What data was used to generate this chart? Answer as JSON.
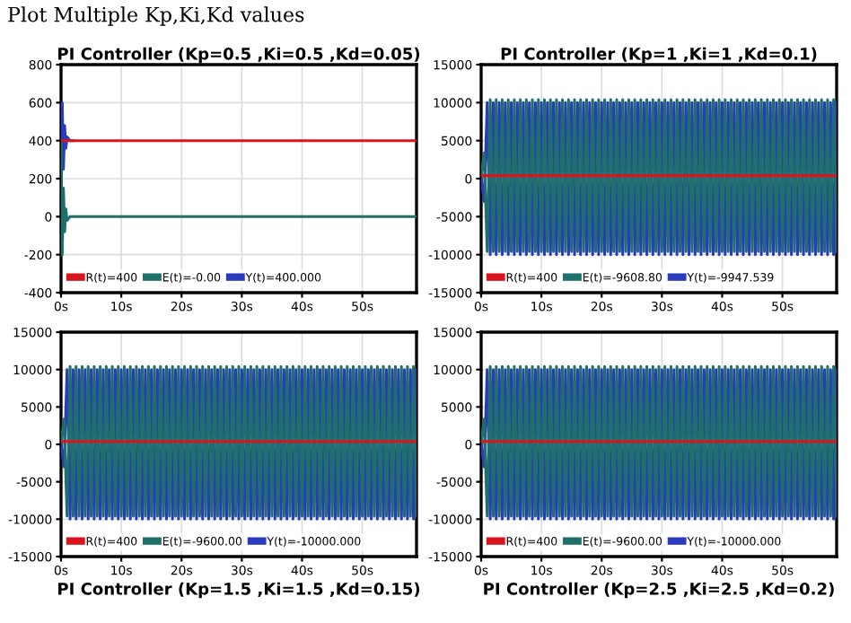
{
  "chart_data": [
    {
      "type": "line",
      "title": "PI Controller (Kp=0.5 ,Ki=0.5 ,Kd=0.05)",
      "annotations": [
        "Plot Multiple Kp,Ki,Kd values"
      ],
      "x": [
        0,
        0.2,
        0.4,
        0.6,
        0.8,
        1.0,
        1.5,
        2,
        10,
        20,
        30,
        40,
        50,
        59
      ],
      "series": [
        {
          "name": "R(t)=400",
          "color": "#d9141c",
          "values": [
            400,
            400,
            400,
            400,
            400,
            400,
            400,
            400,
            400,
            400,
            400,
            400,
            400,
            400
          ]
        },
        {
          "name": "E(t)=-0.00",
          "color": "#1f6f6a",
          "values": [
            400,
            -200,
            150,
            -80,
            40,
            -20,
            0,
            0,
            0,
            0,
            0,
            0,
            0,
            0
          ]
        },
        {
          "name": "Y(t)=400.000",
          "color": "#2b3bbd",
          "values": [
            0,
            600,
            250,
            480,
            360,
            420,
            400,
            400,
            null,
            null,
            null,
            null,
            null,
            null
          ]
        }
      ],
      "xlim": [
        0,
        59
      ],
      "xticks": [
        {
          "value": 0,
          "label": "0s"
        },
        {
          "value": 10,
          "label": "10s"
        },
        {
          "value": 20,
          "label": "20s"
        },
        {
          "value": 30,
          "label": "30s"
        },
        {
          "value": 40,
          "label": "40s"
        },
        {
          "value": 50,
          "label": "50s"
        }
      ],
      "ylim": [
        -400,
        800
      ],
      "yticks": [
        -400,
        -200,
        0,
        200,
        400,
        600,
        800
      ],
      "grid": true,
      "legend": "bottom left"
    },
    {
      "type": "line",
      "title": "PI Controller (Kp=1 ,Ki=1 ,Kd=0.1)",
      "x": [
        0,
        0.5,
        1,
        1.5,
        2,
        2.5,
        3,
        3.5,
        4,
        4.5,
        5,
        5.5,
        6,
        6.5,
        7,
        7.5,
        8,
        8.5,
        9,
        9.5,
        10,
        10.5,
        11,
        11.5,
        12,
        12.5,
        13,
        13.5,
        14,
        14.5,
        15,
        15.5,
        16,
        16.5,
        17,
        17.5,
        18,
        18.5,
        19,
        19.5,
        20,
        20.5,
        21,
        21.5,
        22,
        22.5,
        23,
        23.5,
        24,
        24.5,
        25,
        25.5,
        26,
        26.5,
        27,
        27.5,
        28,
        28.5,
        29,
        29.5,
        30,
        30.5,
        31,
        31.5,
        32,
        32.5,
        33,
        33.5,
        34,
        34.5,
        35,
        35.5,
        36,
        36.5,
        37,
        37.5,
        38,
        38.5,
        39,
        39.5,
        40,
        40.5,
        41,
        41.5,
        42,
        42.5,
        43,
        43.5,
        44,
        44.5,
        45,
        45.5,
        46,
        46.5,
        47,
        47.5,
        48,
        48.5,
        49,
        49.5,
        50,
        50.5,
        51,
        51.5,
        52,
        52.5,
        53,
        53.5,
        54,
        54.5,
        55,
        55.5,
        56,
        56.5,
        57,
        57.5,
        58,
        58.5,
        59
      ],
      "series": [
        {
          "name": "R(t)=400",
          "color": "#d9141c",
          "values": [
            400,
            400,
            400,
            400,
            400,
            400,
            400,
            400,
            400,
            400,
            400,
            400,
            400,
            400,
            400,
            400,
            400,
            400,
            400,
            400,
            400,
            400,
            400,
            400,
            400,
            400,
            400,
            400,
            400,
            400,
            400,
            400,
            400,
            400,
            400,
            400,
            400,
            400,
            400,
            400,
            400,
            400,
            400,
            400,
            400,
            400,
            400,
            400,
            400,
            400,
            400,
            400,
            400,
            400,
            400,
            400,
            400,
            400,
            400,
            400,
            400,
            400,
            400,
            400,
            400,
            400,
            400,
            400,
            400,
            400,
            400,
            400,
            400,
            400,
            400,
            400,
            400,
            400,
            400,
            400,
            400,
            400,
            400,
            400,
            400,
            400,
            400,
            400,
            400,
            400,
            400,
            400,
            400,
            400,
            400,
            400,
            400,
            400,
            400,
            400,
            400,
            400,
            400,
            400,
            400,
            400,
            400,
            400,
            400,
            400,
            400,
            400,
            400,
            400,
            400,
            400,
            400,
            400,
            400
          ]
        },
        {
          "name": "E(t)=-9608.80",
          "color": "#1f6f6a",
          "values": [
            400,
            3400,
            -9600,
            10400,
            -9600,
            10400,
            -9600,
            10400,
            -9600,
            10400,
            -9600,
            10400,
            -9600,
            10400,
            -9600,
            10400,
            -9600,
            10400,
            -9600,
            10400,
            -9600,
            10400,
            -9600,
            10400,
            -9600,
            10400,
            -9600,
            10400,
            -9600,
            10400,
            -9600,
            10400,
            -9600,
            10400,
            -9600,
            10400,
            -9600,
            10400,
            -9600,
            10400,
            -9600,
            10400,
            -9600,
            10400,
            -9600,
            10400,
            -9600,
            10400,
            -9600,
            10400,
            -9600,
            10400,
            -9600,
            10400,
            -9600,
            10400,
            -9600,
            10400,
            -9600,
            10400,
            -9600,
            10400,
            -9600,
            10400,
            -9600,
            10400,
            -9600,
            10400,
            -9600,
            10400,
            -9600,
            10400,
            -9600,
            10400,
            -9600,
            10400,
            -9600,
            10400,
            -9600,
            10400,
            -9600,
            10400,
            -9600,
            10400,
            -9600,
            10400,
            -9600,
            10400,
            -9600,
            10400,
            -9600,
            10400,
            -9600,
            10400,
            -9600,
            10400,
            -9600,
            10400,
            -9600,
            10400,
            -9600,
            10400,
            -9600,
            10400,
            -9600,
            10400,
            -9600,
            10400,
            -9600,
            10400,
            -9600,
            10400,
            -9600,
            10400,
            -9600,
            10400,
            -9600,
            10400,
            -9600
          ]
        },
        {
          "name": "Y(t)=-9947.539",
          "color": "#2b3bbd",
          "values": [
            0,
            -3000,
            10000,
            -10000,
            10000,
            -10000,
            10000,
            -10000,
            10000,
            -10000,
            10000,
            -10000,
            10000,
            -10000,
            10000,
            -10000,
            10000,
            -10000,
            10000,
            -10000,
            10000,
            -10000,
            10000,
            -10000,
            10000,
            -10000,
            10000,
            -10000,
            10000,
            -10000,
            10000,
            -10000,
            10000,
            -10000,
            10000,
            -10000,
            10000,
            -10000,
            10000,
            -10000,
            10000,
            -10000,
            10000,
            -10000,
            10000,
            -10000,
            10000,
            -10000,
            10000,
            -10000,
            10000,
            -10000,
            10000,
            -10000,
            10000,
            -10000,
            10000,
            -10000,
            10000,
            -10000,
            10000,
            -10000,
            10000,
            -10000,
            10000,
            -10000,
            10000,
            -10000,
            10000,
            -10000,
            10000,
            -10000,
            10000,
            -10000,
            10000,
            -10000,
            10000,
            -10000,
            10000,
            -10000,
            10000,
            -10000,
            10000,
            -10000,
            10000,
            -10000,
            10000,
            -10000,
            10000,
            -10000,
            10000,
            -10000,
            10000,
            -10000,
            10000,
            -10000,
            10000,
            -10000,
            10000,
            -10000,
            10000,
            -10000,
            10000,
            -10000,
            10000,
            -10000,
            10000,
            -10000,
            10000,
            -10000,
            10000,
            -10000,
            10000,
            -10000,
            10000,
            -10000,
            10000,
            -10000,
            10000
          ]
        }
      ],
      "xlim": [
        0,
        59
      ],
      "xticks": [
        {
          "value": 0,
          "label": "0s"
        },
        {
          "value": 10,
          "label": "10s"
        },
        {
          "value": 20,
          "label": "20s"
        },
        {
          "value": 30,
          "label": "30s"
        },
        {
          "value": 40,
          "label": "40s"
        },
        {
          "value": 50,
          "label": "50s"
        }
      ],
      "ylim": [
        -15000,
        15000
      ],
      "yticks": [
        -15000,
        -10000,
        -5000,
        0,
        5000,
        10000,
        15000
      ],
      "grid": true,
      "legend": "bottom left"
    },
    {
      "type": "line",
      "title": "PI Controller (Kp=1.5 ,Ki=1.5 ,Kd=0.15)",
      "x": [
        0,
        0.5,
        1,
        1.5,
        2,
        2.5,
        3,
        3.5,
        4,
        4.5,
        5,
        5.5,
        6,
        6.5,
        7,
        7.5,
        8,
        8.5,
        9,
        9.5,
        10,
        10.5,
        11,
        11.5,
        12,
        12.5,
        13,
        13.5,
        14,
        14.5,
        15,
        15.5,
        16,
        16.5,
        17,
        17.5,
        18,
        18.5,
        19,
        19.5,
        20,
        20.5,
        21,
        21.5,
        22,
        22.5,
        23,
        23.5,
        24,
        24.5,
        25,
        25.5,
        26,
        26.5,
        27,
        27.5,
        28,
        28.5,
        29,
        29.5,
        30,
        30.5,
        31,
        31.5,
        32,
        32.5,
        33,
        33.5,
        34,
        34.5,
        35,
        35.5,
        36,
        36.5,
        37,
        37.5,
        38,
        38.5,
        39,
        39.5,
        40,
        40.5,
        41,
        41.5,
        42,
        42.5,
        43,
        43.5,
        44,
        44.5,
        45,
        45.5,
        46,
        46.5,
        47,
        47.5,
        48,
        48.5,
        49,
        49.5,
        50,
        50.5,
        51,
        51.5,
        52,
        52.5,
        53,
        53.5,
        54,
        54.5,
        55,
        55.5,
        56,
        56.5,
        57,
        57.5,
        58,
        58.5,
        59
      ],
      "series": [
        {
          "name": "R(t)=400",
          "color": "#d9141c",
          "values": [
            400,
            400,
            400,
            400,
            400,
            400,
            400,
            400,
            400,
            400,
            400,
            400,
            400,
            400,
            400,
            400,
            400,
            400,
            400,
            400,
            400,
            400,
            400,
            400,
            400,
            400,
            400,
            400,
            400,
            400,
            400,
            400,
            400,
            400,
            400,
            400,
            400,
            400,
            400,
            400,
            400,
            400,
            400,
            400,
            400,
            400,
            400,
            400,
            400,
            400,
            400,
            400,
            400,
            400,
            400,
            400,
            400,
            400,
            400,
            400,
            400,
            400,
            400,
            400,
            400,
            400,
            400,
            400,
            400,
            400,
            400,
            400,
            400,
            400,
            400,
            400,
            400,
            400,
            400,
            400,
            400,
            400,
            400,
            400,
            400,
            400,
            400,
            400,
            400,
            400,
            400,
            400,
            400,
            400,
            400,
            400,
            400,
            400,
            400,
            400,
            400,
            400,
            400,
            400,
            400,
            400,
            400,
            400,
            400,
            400,
            400,
            400,
            400,
            400,
            400,
            400,
            400,
            400,
            400
          ]
        },
        {
          "name": "E(t)=-9600.00",
          "color": "#1f6f6a",
          "values": [
            400,
            3400,
            -9600,
            10400,
            -9600,
            10400,
            -9600,
            10400,
            -9600,
            10400,
            -9600,
            10400,
            -9600,
            10400,
            -9600,
            10400,
            -9600,
            10400,
            -9600,
            10400,
            -9600,
            10400,
            -9600,
            10400,
            -9600,
            10400,
            -9600,
            10400,
            -9600,
            10400,
            -9600,
            10400,
            -9600,
            10400,
            -9600,
            10400,
            -9600,
            10400,
            -9600,
            10400,
            -9600,
            10400,
            -9600,
            10400,
            -9600,
            10400,
            -9600,
            10400,
            -9600,
            10400,
            -9600,
            10400,
            -9600,
            10400,
            -9600,
            10400,
            -9600,
            10400,
            -9600,
            10400,
            -9600,
            10400,
            -9600,
            10400,
            -9600,
            10400,
            -9600,
            10400,
            -9600,
            10400,
            -9600,
            10400,
            -9600,
            10400,
            -9600,
            10400,
            -9600,
            10400,
            -9600,
            10400,
            -9600,
            10400,
            -9600,
            10400,
            -9600,
            10400,
            -9600,
            10400,
            -9600,
            10400,
            -9600,
            10400,
            -9600,
            10400,
            -9600,
            10400,
            -9600,
            10400,
            -9600,
            10400,
            -9600,
            10400,
            -9600,
            10400,
            -9600,
            10400,
            -9600,
            10400,
            -9600,
            10400,
            -9600,
            10400,
            -9600,
            10400,
            -9600,
            10400,
            -9600,
            10400,
            -9600
          ]
        },
        {
          "name": "Y(t)=-10000.000",
          "color": "#2b3bbd",
          "values": [
            0,
            -3000,
            10000,
            -10000,
            10000,
            -10000,
            10000,
            -10000,
            10000,
            -10000,
            10000,
            -10000,
            10000,
            -10000,
            10000,
            -10000,
            10000,
            -10000,
            10000,
            -10000,
            10000,
            -10000,
            10000,
            -10000,
            10000,
            -10000,
            10000,
            -10000,
            10000,
            -10000,
            10000,
            -10000,
            10000,
            -10000,
            10000,
            -10000,
            10000,
            -10000,
            10000,
            -10000,
            10000,
            -10000,
            10000,
            -10000,
            10000,
            -10000,
            10000,
            -10000,
            10000,
            -10000,
            10000,
            -10000,
            10000,
            -10000,
            10000,
            -10000,
            10000,
            -10000,
            10000,
            -10000,
            10000,
            -10000,
            10000,
            -10000,
            10000,
            -10000,
            10000,
            -10000,
            10000,
            -10000,
            10000,
            -10000,
            10000,
            -10000,
            10000,
            -10000,
            10000,
            -10000,
            10000,
            -10000,
            10000,
            -10000,
            10000,
            -10000,
            10000,
            -10000,
            10000,
            -10000,
            10000,
            -10000,
            10000,
            -10000,
            10000,
            -10000,
            10000,
            -10000,
            10000,
            -10000,
            10000,
            -10000,
            10000,
            -10000,
            10000,
            -10000,
            10000,
            -10000,
            10000,
            -10000,
            10000,
            -10000,
            10000,
            -10000,
            10000,
            -10000,
            10000,
            -10000,
            10000,
            -10000,
            10000
          ]
        }
      ],
      "xlim": [
        0,
        59
      ],
      "xticks": [
        {
          "value": 0,
          "label": "0s"
        },
        {
          "value": 10,
          "label": "10s"
        },
        {
          "value": 20,
          "label": "20s"
        },
        {
          "value": 30,
          "label": "30s"
        },
        {
          "value": 40,
          "label": "40s"
        },
        {
          "value": 50,
          "label": "50s"
        }
      ],
      "ylim": [
        -15000,
        15000
      ],
      "yticks": [
        -15000,
        -10000,
        -5000,
        0,
        5000,
        10000,
        15000
      ],
      "grid": true,
      "legend": "bottom left"
    },
    {
      "type": "line",
      "title": "PI Controller (Kp=2.5 ,Ki=2.5 ,Kd=0.2)",
      "x": [
        0,
        0.5,
        1,
        1.5,
        2,
        2.5,
        3,
        3.5,
        4,
        4.5,
        5,
        5.5,
        6,
        6.5,
        7,
        7.5,
        8,
        8.5,
        9,
        9.5,
        10,
        10.5,
        11,
        11.5,
        12,
        12.5,
        13,
        13.5,
        14,
        14.5,
        15,
        15.5,
        16,
        16.5,
        17,
        17.5,
        18,
        18.5,
        19,
        19.5,
        20,
        20.5,
        21,
        21.5,
        22,
        22.5,
        23,
        23.5,
        24,
        24.5,
        25,
        25.5,
        26,
        26.5,
        27,
        27.5,
        28,
        28.5,
        29,
        29.5,
        30,
        30.5,
        31,
        31.5,
        32,
        32.5,
        33,
        33.5,
        34,
        34.5,
        35,
        35.5,
        36,
        36.5,
        37,
        37.5,
        38,
        38.5,
        39,
        39.5,
        40,
        40.5,
        41,
        41.5,
        42,
        42.5,
        43,
        43.5,
        44,
        44.5,
        45,
        45.5,
        46,
        46.5,
        47,
        47.5,
        48,
        48.5,
        49,
        49.5,
        50,
        50.5,
        51,
        51.5,
        52,
        52.5,
        53,
        53.5,
        54,
        54.5,
        55,
        55.5,
        56,
        56.5,
        57,
        57.5,
        58,
        58.5,
        59
      ],
      "series": [
        {
          "name": "R(t)=400",
          "color": "#d9141c",
          "values": [
            400,
            400,
            400,
            400,
            400,
            400,
            400,
            400,
            400,
            400,
            400,
            400,
            400,
            400,
            400,
            400,
            400,
            400,
            400,
            400,
            400,
            400,
            400,
            400,
            400,
            400,
            400,
            400,
            400,
            400,
            400,
            400,
            400,
            400,
            400,
            400,
            400,
            400,
            400,
            400,
            400,
            400,
            400,
            400,
            400,
            400,
            400,
            400,
            400,
            400,
            400,
            400,
            400,
            400,
            400,
            400,
            400,
            400,
            400,
            400,
            400,
            400,
            400,
            400,
            400,
            400,
            400,
            400,
            400,
            400,
            400,
            400,
            400,
            400,
            400,
            400,
            400,
            400,
            400,
            400,
            400,
            400,
            400,
            400,
            400,
            400,
            400,
            400,
            400,
            400,
            400,
            400,
            400,
            400,
            400,
            400,
            400,
            400,
            400,
            400,
            400,
            400,
            400,
            400,
            400,
            400,
            400,
            400,
            400,
            400,
            400,
            400,
            400,
            400,
            400,
            400,
            400,
            400,
            400
          ]
        },
        {
          "name": "E(t)=-9600.00",
          "color": "#1f6f6a",
          "values": [
            400,
            3400,
            -9600,
            10400,
            -9600,
            10400,
            -9600,
            10400,
            -9600,
            10400,
            -9600,
            10400,
            -9600,
            10400,
            -9600,
            10400,
            -9600,
            10400,
            -9600,
            10400,
            -9600,
            10400,
            -9600,
            10400,
            -9600,
            10400,
            -9600,
            10400,
            -9600,
            10400,
            -9600,
            10400,
            -9600,
            10400,
            -9600,
            10400,
            -9600,
            10400,
            -9600,
            10400,
            -9600,
            10400,
            -9600,
            10400,
            -9600,
            10400,
            -9600,
            10400,
            -9600,
            10400,
            -9600,
            10400,
            -9600,
            10400,
            -9600,
            10400,
            -9600,
            10400,
            -9600,
            10400,
            -9600,
            10400,
            -9600,
            10400,
            -9600,
            10400,
            -9600,
            10400,
            -9600,
            10400,
            -9600,
            10400,
            -9600,
            10400,
            -9600,
            10400,
            -9600,
            10400,
            -9600,
            10400,
            -9600,
            10400,
            -9600,
            10400,
            -9600,
            10400,
            -9600,
            10400,
            -9600,
            10400,
            -9600,
            10400,
            -9600,
            10400,
            -9600,
            10400,
            -9600,
            10400,
            -9600,
            10400,
            -9600,
            10400,
            -9600,
            10400,
            -9600,
            10400,
            -9600,
            10400,
            -9600,
            10400,
            -9600,
            10400,
            -9600,
            10400,
            -9600,
            10400,
            -9600,
            10400,
            -9600
          ]
        },
        {
          "name": "Y(t)=-10000.000",
          "color": "#2b3bbd",
          "values": [
            0,
            -3000,
            10000,
            -10000,
            10000,
            -10000,
            10000,
            -10000,
            10000,
            -10000,
            10000,
            -10000,
            10000,
            -10000,
            10000,
            -10000,
            10000,
            -10000,
            10000,
            -10000,
            10000,
            -10000,
            10000,
            -10000,
            10000,
            -10000,
            10000,
            -10000,
            10000,
            -10000,
            10000,
            -10000,
            10000,
            -10000,
            10000,
            -10000,
            10000,
            -10000,
            10000,
            -10000,
            10000,
            -10000,
            10000,
            -10000,
            10000,
            -10000,
            10000,
            -10000,
            10000,
            -10000,
            10000,
            -10000,
            10000,
            -10000,
            10000,
            -10000,
            10000,
            -10000,
            10000,
            -10000,
            10000,
            -10000,
            10000,
            -10000,
            10000,
            -10000,
            10000,
            -10000,
            10000,
            -10000,
            10000,
            -10000,
            10000,
            -10000,
            10000,
            -10000,
            10000,
            -10000,
            10000,
            -10000,
            10000,
            -10000,
            10000,
            -10000,
            10000,
            -10000,
            10000,
            -10000,
            10000,
            -10000,
            10000,
            -10000,
            10000,
            -10000,
            10000,
            -10000,
            10000,
            -10000,
            10000,
            -10000,
            10000,
            -10000,
            10000,
            -10000,
            10000,
            -10000,
            10000,
            -10000,
            10000,
            -10000,
            10000,
            -10000,
            10000,
            -10000,
            10000,
            -10000,
            10000,
            -10000,
            10000
          ]
        }
      ],
      "xlim": [
        0,
        59
      ],
      "xticks": [
        {
          "value": 0,
          "label": "0s"
        },
        {
          "value": 10,
          "label": "10s"
        },
        {
          "value": 20,
          "label": "20s"
        },
        {
          "value": 30,
          "label": "30s"
        },
        {
          "value": 40,
          "label": "40s"
        },
        {
          "value": 50,
          "label": "50s"
        }
      ],
      "ylim": [
        -15000,
        15000
      ],
      "yticks": [
        -15000,
        -10000,
        -5000,
        0,
        5000,
        10000,
        15000
      ],
      "grid": true,
      "legend": "bottom left"
    }
  ]
}
